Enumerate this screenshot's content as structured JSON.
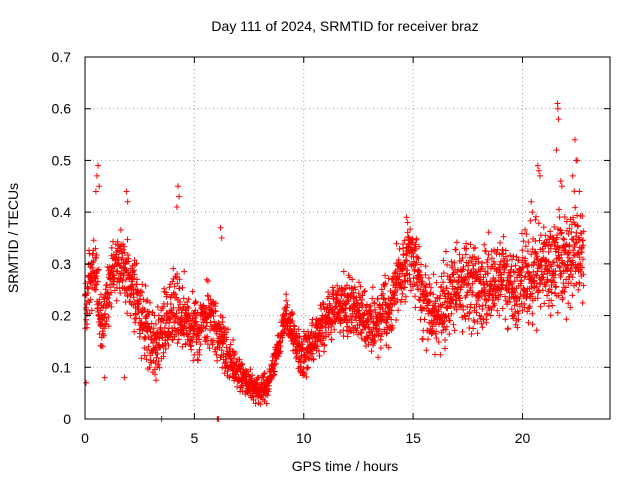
{
  "chart_data": {
    "type": "scatter",
    "title": "Day 111 of 2024, SRMTID for receiver braz",
    "xlabel": "GPS time / hours",
    "ylabel": "SRMTID / TECUs",
    "xlim": [
      0,
      24
    ],
    "ylim": [
      0,
      0.7
    ],
    "xticks": [
      0,
      5,
      10,
      15,
      20
    ],
    "yticks": [
      0,
      0.1,
      0.2,
      0.3,
      0.4,
      0.5,
      0.6,
      0.7
    ],
    "ytick_labels": [
      "0",
      "0.1",
      "0.2",
      "0.3",
      "0.4",
      "0.5",
      "0.6",
      "0.7"
    ],
    "grid": true,
    "marker": "+",
    "color": "#ff0000",
    "trend": [
      [
        0.0,
        0.22
      ],
      [
        0.4,
        0.3
      ],
      [
        0.8,
        0.18
      ],
      [
        1.2,
        0.28
      ],
      [
        1.6,
        0.3
      ],
      [
        2.0,
        0.27
      ],
      [
        2.4,
        0.22
      ],
      [
        2.8,
        0.17
      ],
      [
        3.2,
        0.15
      ],
      [
        3.6,
        0.18
      ],
      [
        4.0,
        0.21
      ],
      [
        4.4,
        0.2
      ],
      [
        4.8,
        0.19
      ],
      [
        5.2,
        0.17
      ],
      [
        5.6,
        0.2
      ],
      [
        6.0,
        0.18
      ],
      [
        6.4,
        0.13
      ],
      [
        6.8,
        0.1
      ],
      [
        7.2,
        0.08
      ],
      [
        7.6,
        0.065
      ],
      [
        8.0,
        0.06
      ],
      [
        8.4,
        0.07
      ],
      [
        8.8,
        0.13
      ],
      [
        9.2,
        0.2
      ],
      [
        9.6,
        0.15
      ],
      [
        10.0,
        0.11
      ],
      [
        10.4,
        0.15
      ],
      [
        10.8,
        0.18
      ],
      [
        11.2,
        0.2
      ],
      [
        11.6,
        0.22
      ],
      [
        12.0,
        0.21
      ],
      [
        12.4,
        0.21
      ],
      [
        12.8,
        0.19
      ],
      [
        13.2,
        0.18
      ],
      [
        13.6,
        0.19
      ],
      [
        14.0,
        0.22
      ],
      [
        14.4,
        0.28
      ],
      [
        14.8,
        0.31
      ],
      [
        15.2,
        0.28
      ],
      [
        15.6,
        0.22
      ],
      [
        16.0,
        0.19
      ],
      [
        16.4,
        0.22
      ],
      [
        16.8,
        0.26
      ],
      [
        17.2,
        0.25
      ],
      [
        17.6,
        0.27
      ],
      [
        18.0,
        0.25
      ],
      [
        18.4,
        0.26
      ],
      [
        18.8,
        0.27
      ],
      [
        19.2,
        0.27
      ],
      [
        19.6,
        0.26
      ],
      [
        20.0,
        0.26
      ],
      [
        20.4,
        0.28
      ],
      [
        20.8,
        0.3
      ],
      [
        21.2,
        0.29
      ],
      [
        21.6,
        0.31
      ],
      [
        22.0,
        0.3
      ],
      [
        22.4,
        0.33
      ],
      [
        22.8,
        0.3
      ]
    ],
    "spread": [
      [
        0.0,
        0.05
      ],
      [
        2.0,
        0.06
      ],
      [
        4.0,
        0.07
      ],
      [
        6.0,
        0.05
      ],
      [
        7.0,
        0.03
      ],
      [
        8.5,
        0.02
      ],
      [
        10.0,
        0.04
      ],
      [
        12.0,
        0.05
      ],
      [
        14.5,
        0.06
      ],
      [
        16.0,
        0.07
      ],
      [
        19.0,
        0.07
      ],
      [
        22.8,
        0.08
      ]
    ],
    "sample_step_hours": 0.008,
    "outliers": [
      [
        0.55,
        0.47
      ],
      [
        0.6,
        0.49
      ],
      [
        0.5,
        0.44
      ],
      [
        0.65,
        0.45
      ],
      [
        1.9,
        0.44
      ],
      [
        1.95,
        0.42
      ],
      [
        4.25,
        0.45
      ],
      [
        4.3,
        0.43
      ],
      [
        4.2,
        0.41
      ],
      [
        6.2,
        0.37
      ],
      [
        6.25,
        0.35
      ],
      [
        14.7,
        0.39
      ],
      [
        14.75,
        0.38
      ],
      [
        20.4,
        0.42
      ],
      [
        20.45,
        0.4
      ],
      [
        20.7,
        0.49
      ],
      [
        20.75,
        0.48
      ],
      [
        20.8,
        0.47
      ],
      [
        21.6,
        0.61
      ],
      [
        21.62,
        0.6
      ],
      [
        21.65,
        0.58
      ],
      [
        21.55,
        0.52
      ],
      [
        22.4,
        0.54
      ],
      [
        22.45,
        0.5
      ],
      [
        22.5,
        0.5
      ],
      [
        22.6,
        0.44
      ],
      [
        22.3,
        0.47
      ],
      [
        21.8,
        0.45
      ],
      [
        21.75,
        0.46
      ],
      [
        0.05,
        0.07
      ],
      [
        3.5,
        0.0
      ],
      [
        6.05,
        0.0
      ],
      [
        6.1,
        0.0
      ],
      [
        1.8,
        0.08
      ],
      [
        0.9,
        0.08
      ],
      [
        7.8,
        0.03
      ],
      [
        8.3,
        0.03
      ]
    ]
  }
}
